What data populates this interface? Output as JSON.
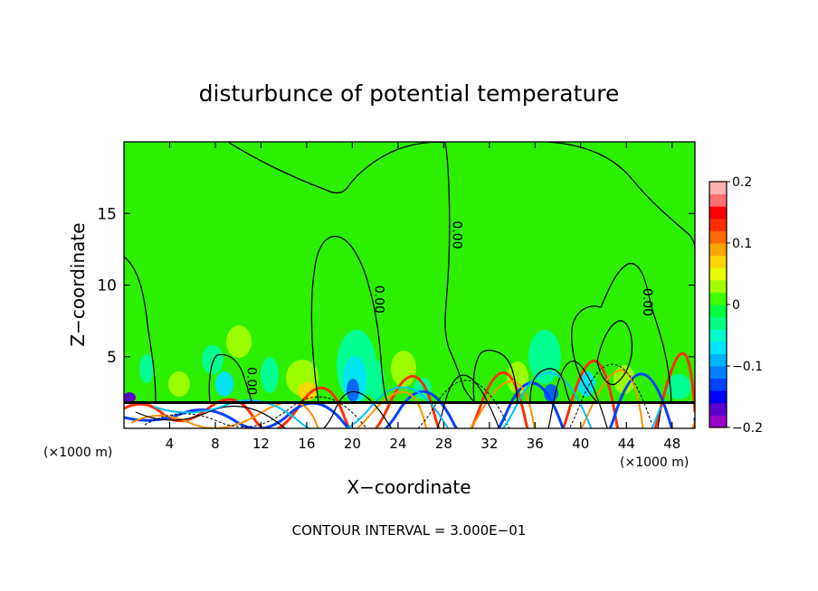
{
  "chart_data": {
    "type": "heatmap",
    "title": "disturbunce of potential temperature",
    "xlabel": "X−coordinate",
    "ylabel": "Z−coordinate",
    "x_unit_left": "(×1000 m)",
    "x_unit_right": "(×1000 m)",
    "xlim": [
      0,
      50
    ],
    "ylim": [
      0,
      20
    ],
    "xticks": [
      4,
      8,
      12,
      16,
      20,
      24,
      28,
      32,
      36,
      40,
      44,
      48
    ],
    "xtick_labels": [
      "4",
      "8",
      "12",
      "16",
      "20",
      "24",
      "28",
      "32",
      "36",
      "40",
      "44",
      "48"
    ],
    "yticks": [
      5,
      10,
      15
    ],
    "ytick_labels": [
      "5",
      "10",
      "15"
    ],
    "contour_interval_text": "CONTOUR INTERVAL = 3.000E−01",
    "colorbar": {
      "min": -0.2,
      "max": 0.2,
      "tick_values": [
        0.2,
        0.1,
        0,
        -0.1,
        -0.2
      ],
      "tick_labels": [
        "0.2",
        "0.1",
        "0",
        "−0.1",
        "−0.2"
      ],
      "colors": [
        "#9b00c8",
        "#5a00cc",
        "#0000ff",
        "#0040ff",
        "#0080ff",
        "#00b4ff",
        "#00e4ff",
        "#00ffc8",
        "#00ff80",
        "#00ff40",
        "#40ff00",
        "#a0ff00",
        "#e6ff00",
        "#ffd700",
        "#ffa500",
        "#ff6a00",
        "#ff2e00",
        "#ff0000",
        "#ff7070",
        "#ffb0b0"
      ]
    },
    "contour_labels": [
      {
        "text": "0.00",
        "x": 10.8,
        "z": 3.3
      },
      {
        "text": "0.00",
        "x": 22.0,
        "z": 9.0
      },
      {
        "text": "0.00",
        "x": 28.8,
        "z": 13.5
      },
      {
        "text": "0.00",
        "x": 45.5,
        "z": 8.8
      }
    ]
  }
}
